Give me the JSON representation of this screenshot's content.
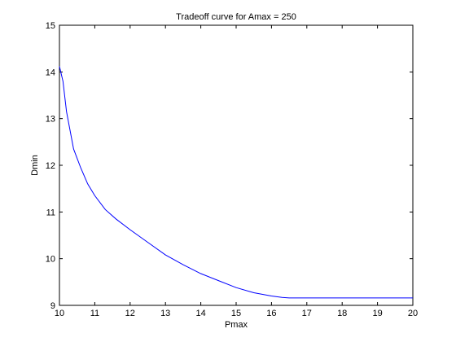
{
  "chart_data": {
    "type": "line",
    "title": "Tradeoff curve for Amax = 250",
    "xlabel": "Pmax",
    "ylabel": "Dmin",
    "xlim": [
      10,
      20
    ],
    "ylim": [
      9,
      15
    ],
    "xticks": [
      10,
      11,
      12,
      13,
      14,
      15,
      16,
      17,
      18,
      19,
      20
    ],
    "yticks": [
      9,
      10,
      11,
      12,
      13,
      14,
      15
    ],
    "grid": false,
    "line_color": "#0000ff",
    "series": [
      {
        "x": [
          10.0,
          10.1,
          10.2,
          10.4,
          10.6,
          10.8,
          11.0,
          11.3,
          11.6,
          12.0,
          12.5,
          13.0,
          13.5,
          14.0,
          14.5,
          15.0,
          15.5,
          16.0,
          16.3,
          16.5,
          16.7,
          17.0,
          18.0,
          19.0,
          20.0
        ],
        "y": [
          14.12,
          13.8,
          13.15,
          12.35,
          11.95,
          11.6,
          11.35,
          11.05,
          10.85,
          10.62,
          10.35,
          10.08,
          9.87,
          9.68,
          9.53,
          9.38,
          9.27,
          9.2,
          9.17,
          9.16,
          9.16,
          9.16,
          9.16,
          9.16,
          9.16
        ]
      }
    ]
  }
}
